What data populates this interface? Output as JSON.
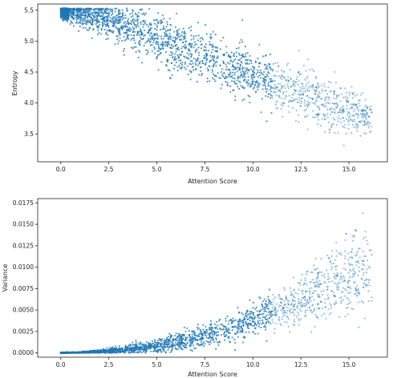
{
  "chart_data": [
    {
      "type": "scatter",
      "xlabel": "Attention Score",
      "ylabel": "Entropy",
      "xlim": [
        -1.2,
        17.0
      ],
      "ylim": [
        3.05,
        5.6
      ],
      "xticks": [
        0.0,
        2.5,
        5.0,
        7.5,
        10.0,
        12.5,
        15.0
      ],
      "yticks": [
        3.5,
        4.0,
        4.5,
        5.0,
        5.5
      ],
      "xtick_labels": [
        "0.0",
        "2.5",
        "5.0",
        "7.5",
        "10.0",
        "12.5",
        "15.0"
      ],
      "ytick_labels": [
        "3.5",
        "4.0",
        "4.5",
        "5.0",
        "5.5"
      ],
      "grid": false,
      "color": "#1f77b4",
      "series": [
        {
          "x": [
            0.0,
            0.5,
            1.0,
            2.0,
            3.0,
            4.0,
            5.0,
            6.0,
            7.0,
            8.0,
            9.0,
            10.0,
            11.0,
            12.0,
            13.0,
            14.0,
            15.0,
            16.0
          ],
          "y": [
            5.5,
            5.48,
            5.45,
            5.38,
            5.28,
            5.17,
            5.05,
            4.92,
            4.8,
            4.68,
            4.56,
            4.44,
            4.32,
            4.2,
            4.08,
            3.95,
            3.85,
            3.78
          ],
          "spread": [
            0.05,
            0.08,
            0.1,
            0.13,
            0.15,
            0.17,
            0.19,
            0.2,
            0.21,
            0.21,
            0.22,
            0.22,
            0.22,
            0.22,
            0.22,
            0.22,
            0.2,
            0.15
          ]
        }
      ]
    },
    {
      "type": "scatter",
      "xlabel": "Attention Score",
      "ylabel": "Variance",
      "xlim": [
        -1.2,
        17.0
      ],
      "ylim": [
        -0.0005,
        0.018
      ],
      "xticks": [
        0.0,
        2.5,
        5.0,
        7.5,
        10.0,
        12.5,
        15.0
      ],
      "yticks": [
        0.0,
        0.0025,
        0.005,
        0.0075,
        0.01,
        0.0125,
        0.015,
        0.0175
      ],
      "xtick_labels": [
        "0.0",
        "2.5",
        "5.0",
        "7.5",
        "10.0",
        "12.5",
        "15.0"
      ],
      "ytick_labels": [
        "0.0000",
        "0.0025",
        "0.0050",
        "0.0075",
        "0.0100",
        "0.0125",
        "0.0150",
        "0.0175"
      ],
      "grid": false,
      "color": "#1f77b4",
      "series": [
        {
          "x": [
            0.0,
            1.0,
            2.0,
            3.0,
            4.0,
            5.0,
            6.0,
            7.0,
            8.0,
            9.0,
            10.0,
            11.0,
            12.0,
            13.0,
            14.0,
            15.0,
            16.0
          ],
          "y": [
            1e-05,
            5e-05,
            0.00015,
            0.0003,
            0.0005,
            0.0008,
            0.0012,
            0.0017,
            0.0023,
            0.003,
            0.0038,
            0.0047,
            0.0057,
            0.0068,
            0.008,
            0.0092,
            0.0102
          ],
          "spread": [
            1e-05,
            4e-05,
            0.0001,
            0.0002,
            0.0003,
            0.0004,
            0.0005,
            0.0006,
            0.0007,
            0.0008,
            0.0009,
            0.0011,
            0.0013,
            0.0015,
            0.0018,
            0.0022,
            0.0025
          ]
        }
      ]
    }
  ]
}
